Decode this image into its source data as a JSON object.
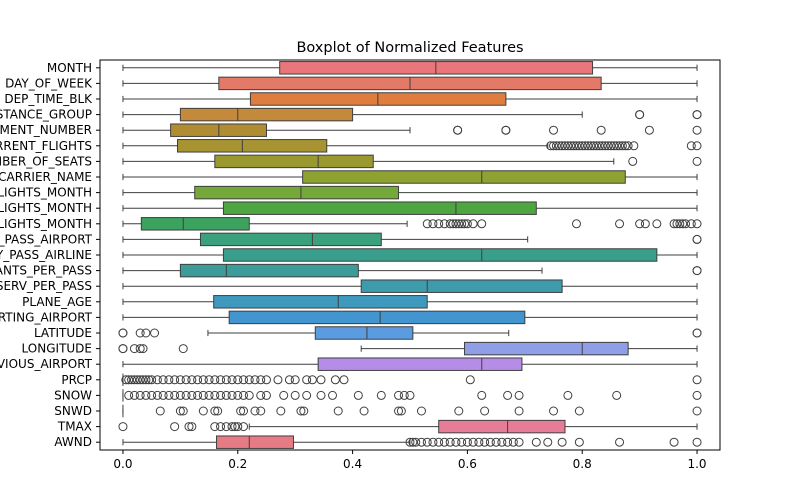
{
  "chart_data": {
    "type": "boxplot",
    "orientation": "horizontal",
    "title": "Boxplot of Normalized Features",
    "xlabel": "",
    "ylabel": "",
    "xlim": [
      -0.04,
      1.04
    ],
    "xticks": [
      0.0,
      0.2,
      0.4,
      0.6,
      0.8,
      1.0
    ],
    "xtick_labels": [
      "0.0",
      "0.2",
      "0.4",
      "0.6",
      "0.8",
      "1.0"
    ],
    "grid": false,
    "categories": [
      {
        "label": "MONTH",
        "color": "#e8767a",
        "whisker_low": 0.0,
        "q1": 0.273,
        "median": 0.545,
        "q3": 0.818,
        "whisker_high": 1.0,
        "outliers": []
      },
      {
        "label": "DAY_OF_WEEK",
        "color": "#e27a67",
        "whisker_low": 0.0,
        "q1": 0.167,
        "median": 0.5,
        "q3": 0.833,
        "whisker_high": 1.0,
        "outliers": []
      },
      {
        "label": "DEP_TIME_BLK",
        "color": "#df7d3f",
        "whisker_low": 0.0,
        "q1": 0.222,
        "median": 0.444,
        "q3": 0.667,
        "whisker_high": 1.0,
        "outliers": []
      },
      {
        "label": "DISTANCE_GROUP",
        "color": "#c48a3b",
        "whisker_low": 0.0,
        "q1": 0.1,
        "median": 0.2,
        "q3": 0.4,
        "whisker_high": 0.8,
        "outliers": [
          0.9,
          0.9,
          1.0,
          1.0
        ]
      },
      {
        "label": "SEGMENT_NUMBER",
        "color": "#b08c33",
        "whisker_low": 0.0,
        "q1": 0.083,
        "median": 0.167,
        "q3": 0.25,
        "whisker_high": 0.5,
        "outliers": [
          0.583,
          0.583,
          0.667,
          0.667,
          0.75,
          0.833,
          0.917,
          1.0
        ]
      },
      {
        "label": "CONCURRENT_FLIGHTS",
        "color": "#a79331",
        "whisker_low": 0.0,
        "q1": 0.095,
        "median": 0.208,
        "q3": 0.355,
        "whisker_high": 0.74,
        "outliers": [
          0.745,
          0.75,
          0.755,
          0.76,
          0.765,
          0.77,
          0.775,
          0.78,
          0.785,
          0.79,
          0.795,
          0.8,
          0.805,
          0.81,
          0.815,
          0.82,
          0.825,
          0.83,
          0.835,
          0.84,
          0.845,
          0.85,
          0.855,
          0.86,
          0.865,
          0.87,
          0.875,
          0.88,
          0.89,
          0.99,
          1.0
        ]
      },
      {
        "label": "NUMBER_OF_SEATS",
        "color": "#9a9930",
        "whisker_low": 0.0,
        "q1": 0.16,
        "median": 0.34,
        "q3": 0.436,
        "whisker_high": 0.855,
        "outliers": [
          0.888,
          1.0
        ]
      },
      {
        "label": "CARRIER_NAME",
        "color": "#8da231",
        "whisker_low": 0.0,
        "q1": 0.313,
        "median": 0.625,
        "q3": 0.875,
        "whisker_high": 1.0,
        "outliers": []
      },
      {
        "label": "AIRPORT_FLIGHTS_MONTH",
        "color": "#74a838",
        "whisker_low": 0.0,
        "q1": 0.125,
        "median": 0.31,
        "q3": 0.48,
        "whisker_high": 1.0,
        "outliers": []
      },
      {
        "label": "AIRLINE_FLIGHTS_MONTH",
        "color": "#4ea640",
        "whisker_low": 0.0,
        "q1": 0.175,
        "median": 0.58,
        "q3": 0.72,
        "whisker_high": 1.0,
        "outliers": []
      },
      {
        "label": "AIRLINE_AIRPORT_FLIGHTS_MONTH",
        "color": "#3ba260",
        "whisker_low": 0.0,
        "q1": 0.032,
        "median": 0.105,
        "q3": 0.22,
        "whisker_high": 0.495,
        "outliers": [
          0.53,
          0.54,
          0.55,
          0.56,
          0.57,
          0.575,
          0.58,
          0.585,
          0.59,
          0.595,
          0.6,
          0.61,
          0.625,
          0.79,
          0.865,
          0.9,
          0.91,
          0.93,
          0.96,
          0.965,
          0.97,
          0.975,
          0.98,
          0.99,
          1.0
        ]
      },
      {
        "label": "AVG_MONTHLY_PASS_AIRPORT",
        "color": "#3ba07c",
        "whisker_low": 0.0,
        "q1": 0.135,
        "median": 0.33,
        "q3": 0.45,
        "whisker_high": 0.705,
        "outliers": [
          1.0,
          1.0
        ]
      },
      {
        "label": "AVG_MONTHLY_PASS_AIRLINE",
        "color": "#3a9e8d",
        "whisker_low": 0.0,
        "q1": 0.175,
        "median": 0.625,
        "q3": 0.93,
        "whisker_high": 1.0,
        "outliers": []
      },
      {
        "label": "FLT_ATTENDANTS_PER_PASS",
        "color": "#3b9c9a",
        "whisker_low": 0.0,
        "q1": 0.1,
        "median": 0.18,
        "q3": 0.41,
        "whisker_high": 0.73,
        "outliers": [
          1.0,
          1.0
        ]
      },
      {
        "label": "GROUND_SERV_PER_PASS",
        "color": "#3d9bab",
        "whisker_low": 0.0,
        "q1": 0.415,
        "median": 0.53,
        "q3": 0.765,
        "whisker_high": 1.0,
        "outliers": []
      },
      {
        "label": "PLANE_AGE",
        "color": "#3f98be",
        "whisker_low": 0.0,
        "q1": 0.158,
        "median": 0.375,
        "q3": 0.53,
        "whisker_high": 1.0,
        "outliers": []
      },
      {
        "label": "DEPARTING_AIRPORT",
        "color": "#4295cf",
        "whisker_low": 0.0,
        "q1": 0.185,
        "median": 0.448,
        "q3": 0.7,
        "whisker_high": 1.0,
        "outliers": []
      },
      {
        "label": "LATITUDE",
        "color": "#5b9be0",
        "whisker_low": 0.148,
        "q1": 0.335,
        "median": 0.425,
        "q3": 0.505,
        "whisker_high": 0.672,
        "outliers": [
          0.0,
          0.0,
          0.03,
          0.04,
          0.055,
          1.0,
          1.0
        ]
      },
      {
        "label": "LONGITUDE",
        "color": "#8f9ee6",
        "whisker_low": 0.415,
        "q1": 0.595,
        "median": 0.8,
        "q3": 0.88,
        "whisker_high": 1.0,
        "outliers": [
          0.0,
          0.0,
          0.02,
          0.03,
          0.035,
          0.105
        ]
      },
      {
        "label": "PREVIOUS_AIRPORT",
        "color": "#b58de6",
        "whisker_low": 0.0,
        "q1": 0.34,
        "median": 0.625,
        "q3": 0.695,
        "whisker_high": 1.0,
        "outliers": []
      },
      {
        "label": "PRCP",
        "color": "#d57be0",
        "whisker_low": 0.0,
        "q1": 0.0,
        "median": 0.0,
        "q3": 0.0,
        "whisker_high": 0.0,
        "outliers": [
          0.005,
          0.01,
          0.015,
          0.02,
          0.025,
          0.03,
          0.035,
          0.04,
          0.045,
          0.05,
          0.06,
          0.07,
          0.08,
          0.09,
          0.1,
          0.11,
          0.12,
          0.13,
          0.14,
          0.15,
          0.16,
          0.17,
          0.18,
          0.19,
          0.2,
          0.21,
          0.22,
          0.23,
          0.24,
          0.25,
          0.27,
          0.29,
          0.3,
          0.32,
          0.33,
          0.345,
          0.37,
          0.385,
          0.605,
          1.0
        ]
      },
      {
        "label": "SNOW",
        "color": "#e07bc4",
        "whisker_low": 0.0,
        "q1": 0.0,
        "median": 0.0,
        "q3": 0.0,
        "whisker_high": 0.0,
        "outliers": [
          0.01,
          0.02,
          0.03,
          0.04,
          0.05,
          0.06,
          0.07,
          0.08,
          0.09,
          0.1,
          0.11,
          0.12,
          0.13,
          0.14,
          0.15,
          0.16,
          0.17,
          0.18,
          0.19,
          0.2,
          0.21,
          0.22,
          0.24,
          0.25,
          0.28,
          0.3,
          0.32,
          0.345,
          0.365,
          0.41,
          0.45,
          0.48,
          0.49,
          0.5,
          0.625,
          0.67,
          0.69,
          0.775,
          0.86,
          1.0
        ]
      },
      {
        "label": "SNWD",
        "color": "#e47bac",
        "whisker_low": 0.0,
        "q1": 0.0,
        "median": 0.0,
        "q3": 0.0,
        "whisker_high": 0.0,
        "outliers": [
          0.065,
          0.1,
          0.105,
          0.14,
          0.16,
          0.165,
          0.205,
          0.21,
          0.23,
          0.24,
          0.275,
          0.31,
          0.315,
          0.375,
          0.42,
          0.48,
          0.485,
          0.52,
          0.585,
          0.63,
          0.69,
          0.75,
          0.795,
          1.0
        ]
      },
      {
        "label": "TMAX",
        "color": "#e67c98",
        "whisker_low": 0.22,
        "q1": 0.55,
        "median": 0.67,
        "q3": 0.77,
        "whisker_high": 1.0,
        "outliers": [
          0.0,
          0.09,
          0.115,
          0.12,
          0.16,
          0.17,
          0.18,
          0.19,
          0.195,
          0.2,
          0.21
        ]
      },
      {
        "label": "AWND",
        "color": "#e67b86",
        "whisker_low": 0.0,
        "q1": 0.163,
        "median": 0.22,
        "q3": 0.297,
        "whisker_high": 0.5,
        "outliers": [
          0.5,
          0.505,
          0.51,
          0.52,
          0.53,
          0.54,
          0.55,
          0.56,
          0.57,
          0.58,
          0.59,
          0.6,
          0.61,
          0.62,
          0.63,
          0.64,
          0.65,
          0.66,
          0.67,
          0.68,
          0.69,
          0.72,
          0.74,
          0.765,
          0.795,
          0.865,
          0.96,
          1.0
        ]
      }
    ]
  }
}
